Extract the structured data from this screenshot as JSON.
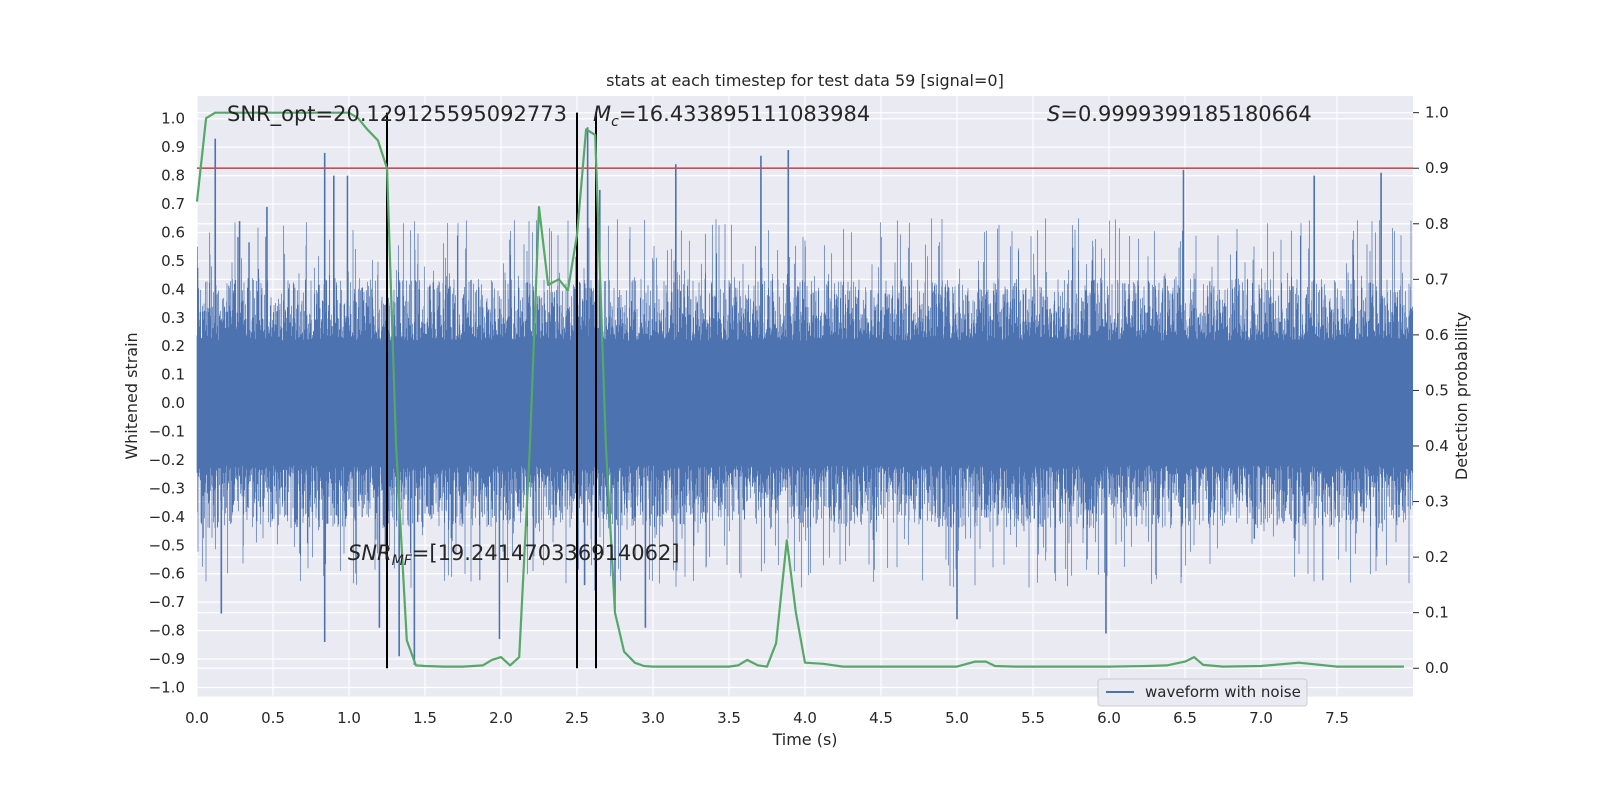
{
  "chart_data": {
    "type": "line",
    "title": "stats at each timestep for test data 59 [signal=0]",
    "xlabel": "Time (s)",
    "ylabel": "Whitened strain",
    "ylabel_right": "Detection probability",
    "xlim": [
      0.0,
      8.0
    ],
    "ylim_left": [
      -1.03,
      1.08
    ],
    "ylim_right": [
      -0.05,
      1.03
    ],
    "x_ticks": [
      "0.0",
      "0.5",
      "1.0",
      "1.5",
      "2.0",
      "2.5",
      "3.0",
      "3.5",
      "4.0",
      "4.5",
      "5.0",
      "5.5",
      "6.0",
      "6.5",
      "7.0",
      "7.5"
    ],
    "y_ticks_left": [
      "1.0",
      "0.9",
      "0.8",
      "0.7",
      "0.6",
      "0.5",
      "0.4",
      "0.3",
      "0.2",
      "0.1",
      "0.0",
      "−0.1",
      "−0.2",
      "−0.3",
      "−0.4",
      "−0.5",
      "−0.6",
      "−0.7",
      "−0.8",
      "−0.9",
      "−1.0"
    ],
    "y_ticks_right": [
      "1.0",
      "0.9",
      "0.8",
      "0.7",
      "0.6",
      "0.5",
      "0.4",
      "0.3",
      "0.2",
      "0.1",
      "0.0"
    ],
    "annotations": {
      "snr_opt": "SNR_opt=20.129125595092773",
      "mc_symbol": "M",
      "mc_sub": "c",
      "mc_value": "=16.433895111083984",
      "s_symbol": "S",
      "s_value": "=0.9999399185180664",
      "snr_mf_symbol": "SNR",
      "snr_mf_sub": "MF",
      "snr_mf_value": "=[19.241470336914062]"
    },
    "legend": {
      "position": "lower-right",
      "entries": [
        "waveform with noise"
      ]
    },
    "colors": {
      "waveform": "#4c72b0",
      "probability": "#55a868",
      "threshold": "#c44e52",
      "markers": "#000000",
      "plot_bg": "#eaeaf2",
      "grid": "#ffffff"
    },
    "threshold_prob": 0.9,
    "vertical_markers": [
      1.25,
      2.5,
      2.625
    ],
    "waveform": {
      "name": "waveform with noise",
      "envelope": 0.4,
      "spikes": [
        {
          "x": 0.12,
          "y": 0.93
        },
        {
          "x": 0.16,
          "y": -0.74
        },
        {
          "x": 0.28,
          "y": 0.64
        },
        {
          "x": 0.46,
          "y": 0.69
        },
        {
          "x": 0.84,
          "y": 0.88
        },
        {
          "x": 0.84,
          "y": -0.84
        },
        {
          "x": 0.9,
          "y": 0.8
        },
        {
          "x": 0.99,
          "y": 0.8
        },
        {
          "x": 1.2,
          "y": -0.79
        },
        {
          "x": 1.33,
          "y": -0.89
        },
        {
          "x": 1.43,
          "y": -0.92
        },
        {
          "x": 1.99,
          "y": -0.83
        },
        {
          "x": 2.55,
          "y": -0.64
        },
        {
          "x": 2.57,
          "y": 0.97
        },
        {
          "x": 2.62,
          "y": -0.66
        },
        {
          "x": 2.65,
          "y": 0.75
        },
        {
          "x": 2.75,
          "y": -0.73
        },
        {
          "x": 2.95,
          "y": -0.79
        },
        {
          "x": 3.15,
          "y": 0.84
        },
        {
          "x": 3.71,
          "y": 0.87
        },
        {
          "x": 3.89,
          "y": 0.89
        },
        {
          "x": 5.0,
          "y": -0.76
        },
        {
          "x": 5.98,
          "y": -0.81
        },
        {
          "x": 6.49,
          "y": 0.82
        },
        {
          "x": 7.35,
          "y": 0.8
        },
        {
          "x": 7.79,
          "y": 0.81
        }
      ]
    },
    "series": [
      {
        "name": "detection probability",
        "x": [
          0.0,
          0.06,
          0.12,
          0.25,
          0.5,
          0.75,
          1.0,
          1.06,
          1.12,
          1.19,
          1.25,
          1.31,
          1.38,
          1.44,
          1.5,
          1.62,
          1.75,
          1.88,
          1.94,
          2.0,
          2.06,
          2.12,
          2.19,
          2.25,
          2.31,
          2.38,
          2.44,
          2.5,
          2.56,
          2.62,
          2.69,
          2.75,
          2.81,
          2.88,
          2.94,
          3.0,
          3.12,
          3.25,
          3.38,
          3.5,
          3.56,
          3.62,
          3.69,
          3.75,
          3.81,
          3.88,
          3.94,
          4.0,
          4.12,
          4.25,
          4.5,
          4.75,
          5.0,
          5.12,
          5.19,
          5.25,
          5.38,
          5.5,
          5.75,
          6.0,
          6.25,
          6.38,
          6.5,
          6.56,
          6.62,
          6.75,
          7.0,
          7.25,
          7.5,
          7.75,
          7.94
        ],
        "values": [
          0.84,
          0.99,
          1.0,
          1.0,
          1.0,
          1.0,
          1.0,
          0.99,
          0.97,
          0.95,
          0.9,
          0.4,
          0.05,
          0.005,
          0.004,
          0.003,
          0.003,
          0.005,
          0.015,
          0.02,
          0.005,
          0.02,
          0.4,
          0.83,
          0.69,
          0.7,
          0.68,
          0.78,
          0.97,
          0.96,
          0.4,
          0.1,
          0.03,
          0.01,
          0.004,
          0.003,
          0.003,
          0.003,
          0.003,
          0.003,
          0.005,
          0.015,
          0.005,
          0.003,
          0.045,
          0.23,
          0.1,
          0.01,
          0.008,
          0.003,
          0.003,
          0.003,
          0.003,
          0.012,
          0.012,
          0.004,
          0.003,
          0.003,
          0.003,
          0.003,
          0.004,
          0.005,
          0.012,
          0.02,
          0.006,
          0.003,
          0.004,
          0.01,
          0.003,
          0.003,
          0.003
        ]
      }
    ]
  }
}
